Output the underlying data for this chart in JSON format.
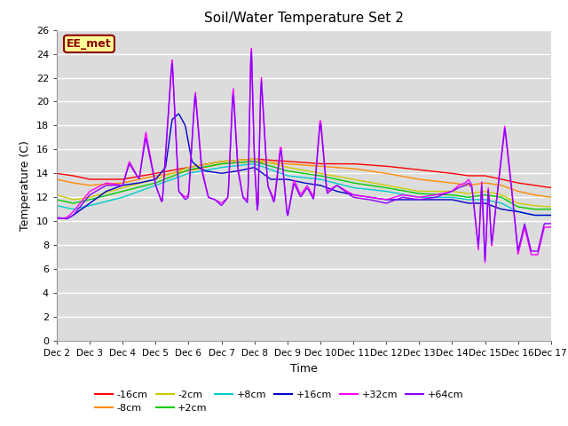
{
  "title": "Soil/Water Temperature Set 2",
  "xlabel": "Time",
  "ylabel": "Temperature (C)",
  "ylim": [
    0,
    26
  ],
  "yticks": [
    0,
    2,
    4,
    6,
    8,
    10,
    12,
    14,
    16,
    18,
    20,
    22,
    24,
    26
  ],
  "annotation_text": "EE_met",
  "annotation_color": "#8B0000",
  "annotation_bg": "#FFFF99",
  "annotation_border": "#8B0000",
  "plot_bg": "#DCDCDC",
  "series": [
    {
      "label": "-16cm",
      "color": "#FF0000"
    },
    {
      "label": "-8cm",
      "color": "#FF8C00"
    },
    {
      "label": "-2cm",
      "color": "#CCCC00"
    },
    {
      "label": "+2cm",
      "color": "#00CC00"
    },
    {
      "label": "+8cm",
      "color": "#00CCCC"
    },
    {
      "label": "+16cm",
      "color": "#0000CC"
    },
    {
      "label": "+32cm",
      "color": "#FF00FF"
    },
    {
      "label": "+64cm",
      "color": "#8B00FF"
    }
  ],
  "x_start": 0,
  "x_end": 15,
  "xtick_positions": [
    0,
    1,
    2,
    3,
    4,
    5,
    6,
    7,
    8,
    9,
    10,
    11,
    12,
    13,
    14,
    15
  ],
  "xtick_labels": [
    "Dec 2",
    "Dec 3",
    "Dec 4",
    "Dec 5",
    "Dec 6",
    "Dec 7",
    "Dec 8",
    "Dec 9",
    "Dec 10",
    "Dec 11",
    "Dec 12",
    "Dec 13",
    "Dec 14",
    "Dec 15",
    "Dec 16",
    "Dec 17"
  ],
  "legend_row1": [
    "-16cm",
    "-8cm",
    "-2cm",
    "+2cm",
    "+8cm",
    "+16cm"
  ],
  "legend_row2": [
    "+32cm",
    "+64cm"
  ]
}
